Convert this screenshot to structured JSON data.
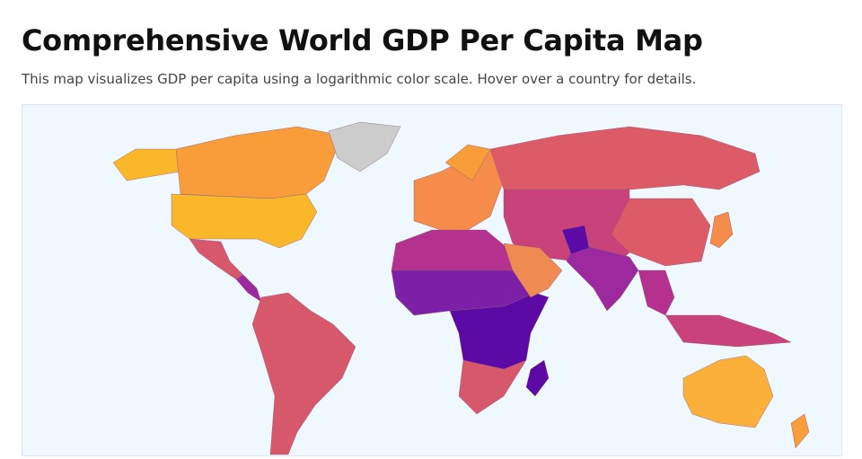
{
  "header": {
    "title": "Comprehensive World GDP Per Capita Map",
    "subtitle": "This map visualizes GDP per capita using a logarithmic color scale. Hover over a country for details."
  }
}
